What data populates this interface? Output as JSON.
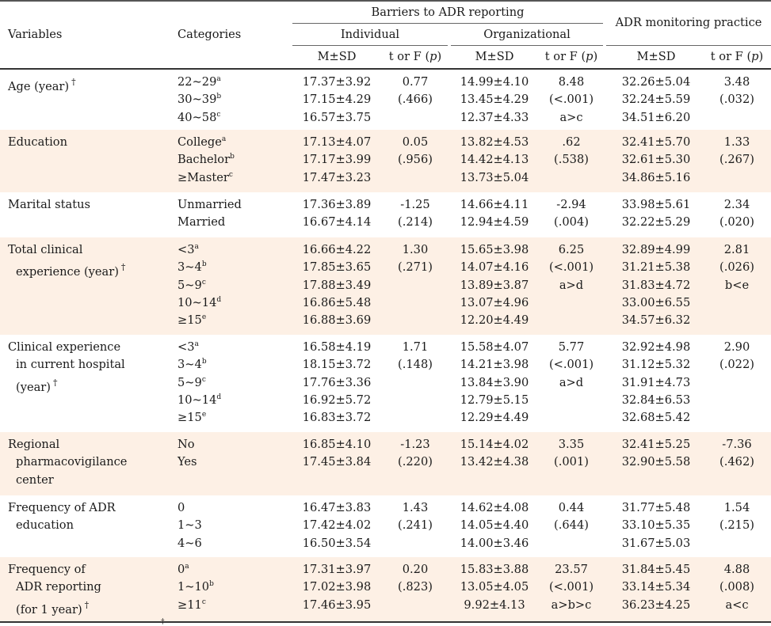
{
  "header": {
    "variables": "Variables",
    "categories": "Categories",
    "barriers": "Barriers to ADR reporting",
    "individual": "Individual",
    "organizational": "Organizational",
    "monitoring": "ADR monitoring practice",
    "msd": "M±SD",
    "t_or_f_prefix": "t or F (",
    "p": "p",
    "t_or_f_suffix": ")"
  },
  "rows": [
    {
      "variable_lines": [
        "Age (year)"
      ],
      "dagger": true,
      "shaded": false,
      "categories": [
        {
          "t": "22~29",
          "s": "a"
        },
        {
          "t": "30~39",
          "s": "b"
        },
        {
          "t": "40~58",
          "s": "c"
        }
      ],
      "ind_msd": [
        "17.37±3.92",
        "17.15±4.29",
        "16.57±3.75"
      ],
      "ind_t": [
        "0.77",
        "(.466)"
      ],
      "org_msd": [
        "14.99±4.10",
        "13.45±4.29",
        "12.37±4.33"
      ],
      "org_t": [
        "8.48",
        "(<.001)",
        "a>c"
      ],
      "mon_msd": [
        "32.26±5.04",
        "32.24±5.59",
        "34.51±6.20"
      ],
      "mon_t": [
        "3.48",
        "(.032)"
      ]
    },
    {
      "variable_lines": [
        "Education"
      ],
      "dagger": false,
      "shaded": true,
      "categories": [
        {
          "t": "College",
          "s": "a"
        },
        {
          "t": "Bachelor",
          "s": "b"
        },
        {
          "t": "≥Master",
          "s": "c"
        }
      ],
      "ind_msd": [
        "17.13±4.07",
        "17.17±3.99",
        "17.47±3.23"
      ],
      "ind_t": [
        "0.05",
        "(.956)"
      ],
      "org_msd": [
        "13.82±4.53",
        "14.42±4.13",
        "13.73±5.04"
      ],
      "org_t": [
        ".62",
        "(.538)"
      ],
      "mon_msd": [
        "32.41±5.70",
        "32.61±5.30",
        "34.86±5.16"
      ],
      "mon_t": [
        "1.33",
        "(.267)"
      ]
    },
    {
      "variable_lines": [
        "Marital status"
      ],
      "dagger": false,
      "shaded": false,
      "categories": [
        {
          "t": "Unmarried",
          "s": ""
        },
        {
          "t": "Married",
          "s": ""
        }
      ],
      "ind_msd": [
        "17.36±3.89",
        "16.67±4.14"
      ],
      "ind_t": [
        "-1.25",
        "(.214)"
      ],
      "org_msd": [
        "14.66±4.11",
        "12.94±4.59"
      ],
      "org_t": [
        "-2.94",
        "(.004)"
      ],
      "mon_msd": [
        "33.98±5.61",
        "32.22±5.29"
      ],
      "mon_t": [
        "2.34",
        "(.020)"
      ]
    },
    {
      "variable_lines": [
        "Total clinical",
        "experience (year)"
      ],
      "dagger": true,
      "shaded": true,
      "categories": [
        {
          "t": "<3",
          "s": "a"
        },
        {
          "t": "3~4",
          "s": "b"
        },
        {
          "t": "5~9",
          "s": "c"
        },
        {
          "t": "10~14",
          "s": "d"
        },
        {
          "t": "≥15",
          "s": "e"
        }
      ],
      "ind_msd": [
        "16.66±4.22",
        "17.85±3.65",
        "17.88±3.49",
        "16.86±5.48",
        "16.88±3.69"
      ],
      "ind_t": [
        "1.30",
        "(.271)"
      ],
      "org_msd": [
        "15.65±3.98",
        "14.07±4.16",
        "13.89±3.87",
        "13.07±4.96",
        "12.20±4.49"
      ],
      "org_t": [
        "6.25",
        "(<.001)",
        "a>d"
      ],
      "mon_msd": [
        "32.89±4.99",
        "31.21±5.38",
        "31.83±4.72",
        "33.00±6.55",
        "34.57±6.32"
      ],
      "mon_t": [
        "2.81",
        "(.026)",
        "b<e"
      ]
    },
    {
      "variable_lines": [
        "Clinical experience",
        "in current hospital",
        "(year)"
      ],
      "dagger": true,
      "shaded": false,
      "categories": [
        {
          "t": "<3",
          "s": "a"
        },
        {
          "t": "3~4",
          "s": "b"
        },
        {
          "t": "5~9",
          "s": "c"
        },
        {
          "t": "10~14",
          "s": "d"
        },
        {
          "t": "≥15",
          "s": "e"
        }
      ],
      "ind_msd": [
        "16.58±4.19",
        "18.15±3.72",
        "17.76±3.36",
        "16.92±5.72",
        "16.83±3.72"
      ],
      "ind_t": [
        "1.71",
        "(.148)"
      ],
      "org_msd": [
        "15.58±4.07",
        "14.21±3.98",
        "13.84±3.90",
        "12.79±5.15",
        "12.29±4.49"
      ],
      "org_t": [
        "5.77",
        "(<.001)",
        "a>d"
      ],
      "mon_msd": [
        "32.92±4.98",
        "31.12±5.32",
        "31.91±4.73",
        "32.84±6.53",
        "32.68±5.42"
      ],
      "mon_t": [
        "2.90",
        "(.022)"
      ]
    },
    {
      "variable_lines": [
        "Regional",
        "pharmacovigilance",
        "center"
      ],
      "dagger": false,
      "shaded": true,
      "categories": [
        {
          "t": "No",
          "s": ""
        },
        {
          "t": "Yes",
          "s": ""
        }
      ],
      "ind_msd": [
        "16.85±4.10",
        "17.45±3.84"
      ],
      "ind_t": [
        "-1.23",
        "(.220)"
      ],
      "org_msd": [
        "15.14±4.02",
        "13.42±4.38"
      ],
      "org_t": [
        "3.35",
        "(.001)"
      ],
      "mon_msd": [
        "32.41±5.25",
        "32.90±5.58"
      ],
      "mon_t": [
        "-7.36",
        "(.462)"
      ]
    },
    {
      "variable_lines": [
        "Frequency of ADR",
        "education"
      ],
      "dagger": false,
      "shaded": false,
      "categories": [
        {
          "t": "0",
          "s": ""
        },
        {
          "t": "1~3",
          "s": ""
        },
        {
          "t": "4~6",
          "s": ""
        }
      ],
      "ind_msd": [
        "16.47±3.83",
        "17.42±4.02",
        "16.50±3.54"
      ],
      "ind_t": [
        "1.43",
        "(.241)"
      ],
      "org_msd": [
        "14.62±4.08",
        "14.05±4.40",
        "14.00±3.46"
      ],
      "org_t": [
        "0.44",
        "(.644)"
      ],
      "mon_msd": [
        "31.77±5.48",
        "33.10±5.35",
        "31.67±5.03"
      ],
      "mon_t": [
        "1.54",
        "(.215)"
      ]
    },
    {
      "variable_lines": [
        "Frequency of",
        "ADR reporting",
        "(for 1 year)"
      ],
      "dagger": true,
      "shaded": true,
      "categories": [
        {
          "t": "0",
          "s": "a"
        },
        {
          "t": "1~10",
          "s": "b"
        },
        {
          "t": "≥11",
          "s": "c"
        }
      ],
      "ind_msd": [
        "17.31±3.97",
        "17.02±3.98",
        "17.46±3.95"
      ],
      "ind_t": [
        "0.20",
        "(.823)"
      ],
      "org_msd": [
        "15.83±3.88",
        "13.05±4.05",
        "9.92±4.13"
      ],
      "org_t": [
        "23.57",
        "(<.001)",
        "a>b>c"
      ],
      "mon_msd": [
        "31.84±5.45",
        "33.14±5.34",
        "36.23±4.25"
      ],
      "mon_t": [
        "4.88",
        "(.008)",
        "a<c"
      ]
    }
  ],
  "footnote_mark": "†"
}
